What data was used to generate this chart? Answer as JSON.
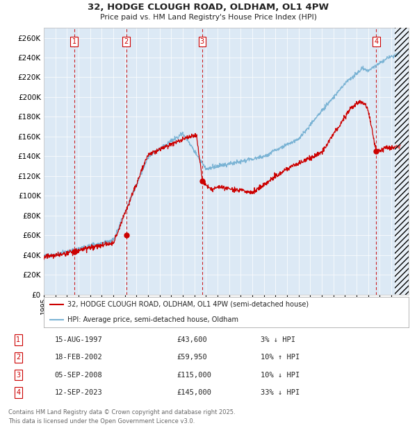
{
  "title": "32, HODGE CLOUGH ROAD, OLDHAM, OL1 4PW",
  "subtitle": "Price paid vs. HM Land Registry's House Price Index (HPI)",
  "background_color": "#dce9f5",
  "fig_bg_color": "#ffffff",
  "hpi_color": "#7ab3d4",
  "price_color": "#cc0000",
  "ylim": [
    0,
    270000
  ],
  "yticks": [
    0,
    20000,
    40000,
    60000,
    80000,
    100000,
    120000,
    140000,
    160000,
    180000,
    200000,
    220000,
    240000,
    260000
  ],
  "x_start_year": 1995,
  "x_end_year": 2026,
  "trans_years": [
    1997.62,
    2002.12,
    2008.67,
    2023.7
  ],
  "trans_prices": [
    43600,
    59950,
    115000,
    145000
  ],
  "legend_line1": "32, HODGE CLOUGH ROAD, OLDHAM, OL1 4PW (semi-detached house)",
  "legend_line2": "HPI: Average price, semi-detached house, Oldham",
  "footer1": "Contains HM Land Registry data © Crown copyright and database right 2025.",
  "footer2": "This data is licensed under the Open Government Licence v3.0.",
  "table_rows": [
    {
      "num": 1,
      "date": "15-AUG-1997",
      "price": "£43,600",
      "pct": "3% ↓ HPI"
    },
    {
      "num": 2,
      "date": "18-FEB-2002",
      "price": "£59,950",
      "pct": "10% ↑ HPI"
    },
    {
      "num": 3,
      "date": "05-SEP-2008",
      "price": "£115,000",
      "pct": "10% ↓ HPI"
    },
    {
      "num": 4,
      "date": "12-SEP-2023",
      "price": "£145,000",
      "pct": "33% ↓ HPI"
    }
  ]
}
